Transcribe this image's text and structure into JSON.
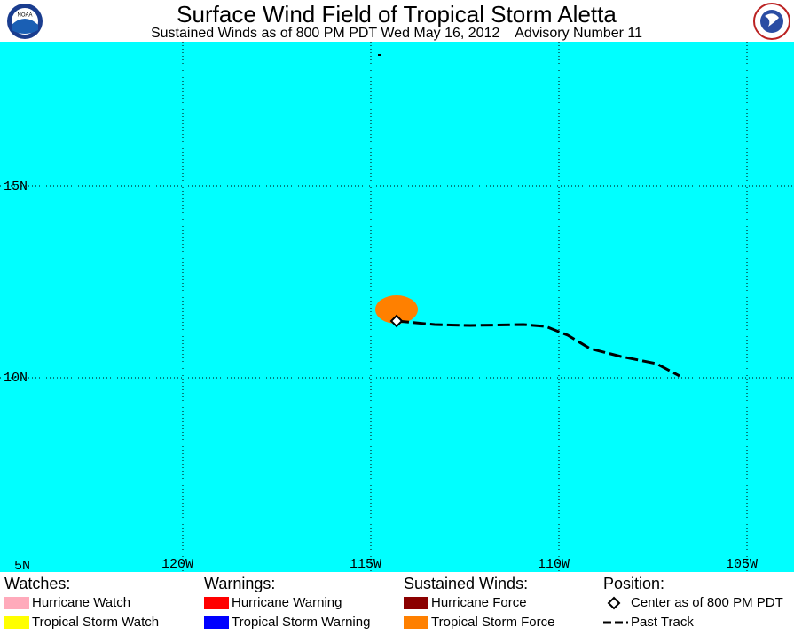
{
  "header": {
    "title": "Surface Wind Field of Tropical Storm Aletta",
    "subtitle": "Sustained Winds as of 800 PM PDT Wed May 16, 2012    Advisory Number 11"
  },
  "map": {
    "lat_labels": [
      "15N",
      "10N",
      "5N"
    ],
    "lon_labels": [
      "120W",
      "115W",
      "110W",
      "105W"
    ]
  },
  "legend": [
    {
      "title": "Watches:",
      "items": [
        "Hurricane Watch",
        "Tropical Storm Watch"
      ]
    },
    {
      "title": "Warnings:",
      "items": [
        "Hurricane Warning",
        "Tropical Storm Warning"
      ]
    },
    {
      "title": "Sustained Winds:",
      "items": [
        "Hurricane Force",
        "Tropical Storm Force"
      ]
    },
    {
      "title": "Position:",
      "items": [
        "Center as of 800 PM PDT",
        "Past Track"
      ]
    }
  ]
}
